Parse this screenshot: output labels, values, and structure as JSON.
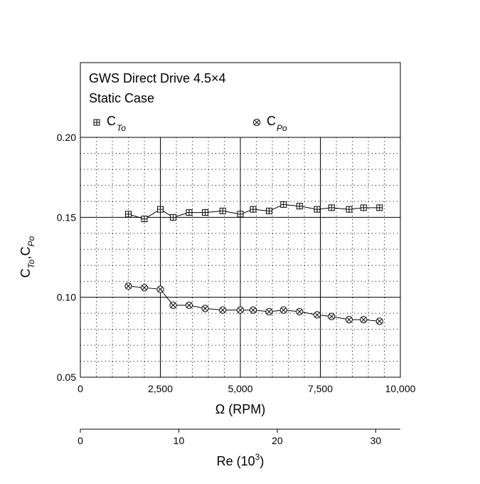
{
  "chart_data": {
    "type": "line",
    "title_lines": [
      "GWS Direct Drive 4.5×4",
      "Static Case"
    ],
    "xlabel": "Ω (RPM)",
    "ylabel": "C_To, C_Po",
    "x_range": [
      0,
      10000
    ],
    "y_range": [
      0.05,
      0.2
    ],
    "x_ticks": [
      0,
      2500,
      5000,
      7500,
      10000
    ],
    "x_tick_labels": [
      "0",
      "2,500",
      "5,000",
      "7,500",
      "10,000"
    ],
    "y_ticks": [
      0.05,
      0.1,
      0.15,
      0.2
    ],
    "y_tick_labels": [
      "0.05",
      "0.10",
      "0.15",
      "0.20"
    ],
    "grid": "major solid, minor dotted",
    "legend_placement": "top",
    "secondary_axis": {
      "label_main": "Re (10",
      "label_sup": "3",
      "label_end": ")",
      "range": [
        0,
        32.5
      ],
      "ticks": [
        0,
        10,
        20,
        30
      ],
      "tick_labels": [
        "0",
        "10",
        "20",
        "30"
      ]
    },
    "series": [
      {
        "name": "C_To",
        "label_main": "C",
        "label_sub": "To",
        "marker": "boxed-plus",
        "x": [
          1500,
          2000,
          2500,
          2900,
          3400,
          3900,
          4450,
          5000,
          5400,
          5900,
          6350,
          6850,
          7400,
          7850,
          8400,
          8850,
          9350
        ],
        "y": [
          0.152,
          0.149,
          0.155,
          0.15,
          0.153,
          0.153,
          0.154,
          0.152,
          0.155,
          0.154,
          0.158,
          0.157,
          0.155,
          0.156,
          0.155,
          0.156,
          0.156
        ]
      },
      {
        "name": "C_Po",
        "label_main": "C",
        "label_sub": "Po",
        "marker": "circled-cross",
        "x": [
          1500,
          2000,
          2500,
          2900,
          3400,
          3900,
          4450,
          5000,
          5400,
          5900,
          6350,
          6850,
          7400,
          7850,
          8400,
          8850,
          9350
        ],
        "y": [
          0.107,
          0.106,
          0.105,
          0.095,
          0.095,
          0.093,
          0.092,
          0.092,
          0.092,
          0.091,
          0.092,
          0.091,
          0.089,
          0.088,
          0.086,
          0.086,
          0.085
        ]
      }
    ]
  }
}
